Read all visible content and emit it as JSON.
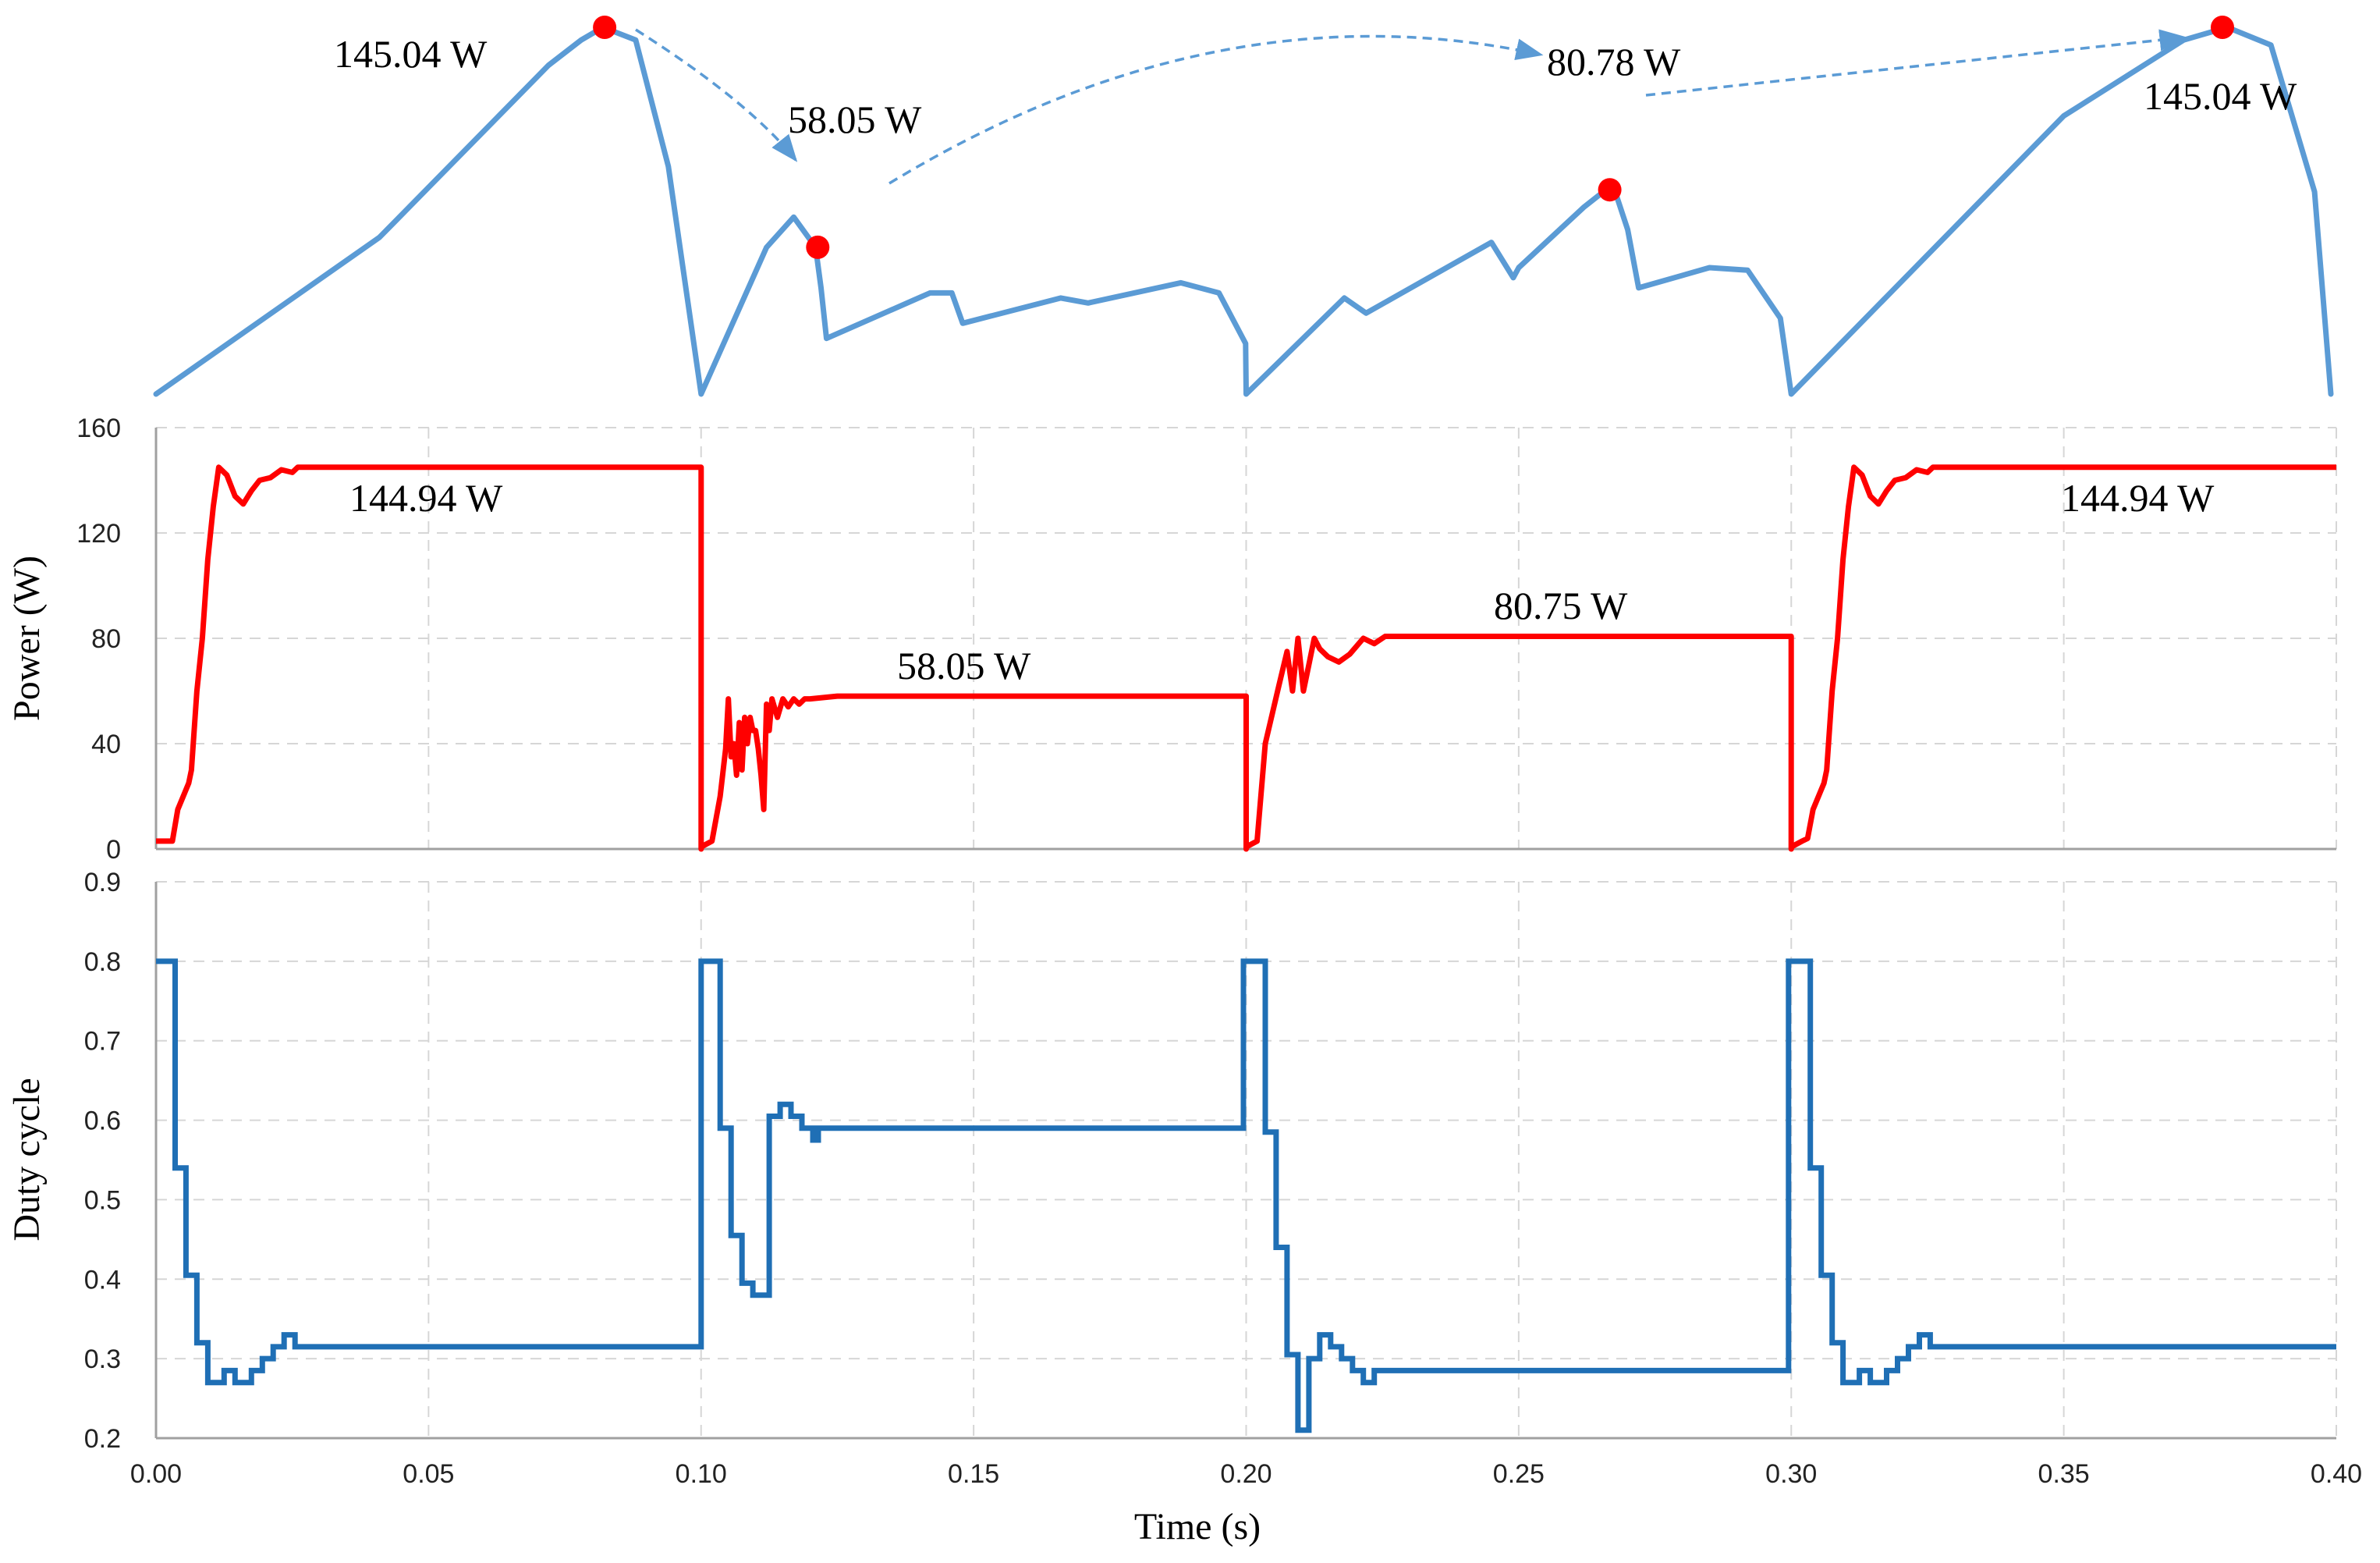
{
  "chart_data": [
    {
      "type": "line",
      "panel": "pv-power-curve-top",
      "annotations": [
        {
          "label": "145.04 W",
          "x": 0.0823,
          "y": 145.04
        },
        {
          "label": "58.05 W",
          "x": 0.1214,
          "y": 58.05
        },
        {
          "label": "80.78 W",
          "x": 0.2667,
          "y": 80.78
        },
        {
          "label": "145.04 W",
          "x": 0.3791,
          "y": 145.04
        }
      ],
      "series": [
        {
          "color": "#5b9bd5",
          "x": [
            0.0,
            0.041,
            0.072,
            0.078,
            0.082,
            0.088,
            0.094,
            0.1,
            0.112,
            0.117,
            0.121,
            0.122,
            0.123,
            0.142,
            0.146,
            0.148,
            0.166,
            0.171,
            0.188,
            0.195,
            0.1999,
            0.2,
            0.218,
            0.222,
            0.245,
            0.249,
            0.25,
            0.262,
            0.266,
            0.268,
            0.27,
            0.272,
            0.285,
            0.292,
            0.298,
            0.3,
            0.35,
            0.372,
            0.38,
            0.388,
            0.396,
            0.399
          ],
          "y": [
            0.0,
            62.0,
            130.0,
            140.0,
            145.04,
            140.0,
            90.0,
            0.0,
            58.0,
            70.0,
            58.05,
            42.0,
            22.0,
            40.0,
            40.0,
            28.0,
            38.0,
            36.0,
            44.0,
            40.0,
            20.0,
            0.0,
            38.0,
            32.0,
            60.0,
            46.0,
            50.0,
            74.0,
            80.78,
            78.0,
            65.0,
            42.0,
            50.0,
            49.0,
            30.0,
            0.0,
            110.0,
            140.0,
            145.04,
            138.0,
            80.0,
            0.0
          ]
        }
      ]
    },
    {
      "type": "line",
      "panel": "power-vs-time",
      "ylabel": "Power (W)",
      "ylim": [
        0,
        160
      ],
      "yticks": [
        "0",
        "40",
        "80",
        "120",
        "160"
      ],
      "xlim": [
        0.0,
        0.4
      ],
      "grid": true,
      "annotations": [
        {
          "label": "144.94 W",
          "x": 0.052,
          "y": 144.94
        },
        {
          "label": "58.05 W",
          "x": 0.15,
          "y": 58.05
        },
        {
          "label": "80.75 W",
          "x": 0.25,
          "y": 80.75
        },
        {
          "label": "144.94 W",
          "x": 0.366,
          "y": 144.94
        }
      ],
      "series": [
        {
          "color": "#ff0000",
          "x": [
            0.0,
            0.003,
            0.004,
            0.005,
            0.006,
            0.0065,
            0.0075,
            0.0085,
            0.0095,
            0.0105,
            0.0115,
            0.013,
            0.0145,
            0.016,
            0.0175,
            0.019,
            0.021,
            0.023,
            0.025,
            0.026,
            0.04,
            0.1,
            0.1,
            0.1002,
            0.102,
            0.1035,
            0.1045,
            0.105,
            0.1055,
            0.106,
            0.1065,
            0.107,
            0.1075,
            0.108,
            0.1085,
            0.109,
            0.1095,
            0.11,
            0.1105,
            0.111,
            0.1115,
            0.112,
            0.1125,
            0.113,
            0.114,
            0.115,
            0.116,
            0.117,
            0.118,
            0.119,
            0.12,
            0.125,
            0.2,
            0.2,
            0.2002,
            0.202,
            0.2035,
            0.206,
            0.2075,
            0.2085,
            0.2095,
            0.2105,
            0.2115,
            0.2125,
            0.2135,
            0.215,
            0.217,
            0.219,
            0.2215,
            0.2235,
            0.2255,
            0.227,
            0.3,
            0.3,
            0.3002,
            0.302,
            0.303,
            0.304,
            0.305,
            0.306,
            0.3065,
            0.3075,
            0.3085,
            0.3095,
            0.3105,
            0.3115,
            0.313,
            0.3145,
            0.316,
            0.3175,
            0.319,
            0.321,
            0.323,
            0.325,
            0.326,
            0.34,
            0.4
          ],
          "y": [
            3.0,
            3.0,
            15.0,
            20.0,
            25.0,
            30.0,
            60.0,
            80.0,
            110.0,
            130.0,
            144.94,
            142.0,
            134.0,
            131.0,
            136.0,
            140.0,
            141.0,
            144.0,
            143.0,
            144.94,
            144.94,
            144.94,
            0.0,
            1.0,
            3.0,
            20.0,
            38.0,
            57.0,
            35.0,
            40.0,
            28.0,
            48.0,
            30.0,
            50.0,
            40.0,
            50.0,
            45.0,
            45.0,
            38.0,
            28.0,
            15.0,
            55.0,
            45.0,
            57.0,
            50.0,
            57.0,
            54.0,
            57.0,
            55.0,
            57.0,
            57.0,
            58.05,
            58.05,
            0.0,
            1.0,
            3.0,
            40.0,
            62.0,
            75.0,
            60.0,
            80.0,
            60.0,
            70.0,
            80.0,
            76.0,
            73.0,
            71.0,
            74.0,
            80.0,
            78.0,
            80.75,
            80.75,
            80.75,
            0.0,
            1.0,
            3.0,
            4.0,
            15.0,
            20.0,
            25.0,
            30.0,
            60.0,
            80.0,
            110.0,
            130.0,
            144.94,
            142.0,
            134.0,
            131.0,
            136.0,
            140.0,
            141.0,
            144.0,
            143.0,
            144.94,
            144.94,
            144.94
          ]
        }
      ]
    },
    {
      "type": "line",
      "panel": "duty-cycle-vs-time",
      "ylabel": "Duty cycle",
      "xlabel": "Time (s)",
      "ylim": [
        0.2,
        0.9
      ],
      "yticks": [
        "0.2",
        "0.3",
        "0.4",
        "0.5",
        "0.6",
        "0.7",
        "0.8",
        "0.9"
      ],
      "xlim": [
        0.0,
        0.4
      ],
      "xticks": [
        "0.00",
        "0.05",
        "0.10",
        "0.15",
        "0.20",
        "0.25",
        "0.30",
        "0.35",
        "0.40"
      ],
      "grid": true,
      "series": [
        {
          "color": "#1f6fb5",
          "x": [
            0.0,
            0.0035,
            0.0035,
            0.0055,
            0.0055,
            0.0075,
            0.0075,
            0.0095,
            0.0095,
            0.0105,
            0.0105,
            0.0125,
            0.0125,
            0.0145,
            0.0145,
            0.0175,
            0.0175,
            0.0195,
            0.0195,
            0.0215,
            0.0215,
            0.0235,
            0.0235,
            0.0255,
            0.0255,
            0.0265,
            0.0265,
            0.1,
            0.1,
            0.1035,
            0.1035,
            0.1055,
            0.1055,
            0.1075,
            0.1075,
            0.1095,
            0.1095,
            0.1125,
            0.1125,
            0.1145,
            0.1145,
            0.1165,
            0.1165,
            0.1185,
            0.1185,
            0.1205,
            0.1205,
            0.1215,
            0.1215,
            0.1245,
            0.1245,
            0.1995,
            0.1995,
            0.2035,
            0.2035,
            0.2055,
            0.2055,
            0.2075,
            0.2075,
            0.2095,
            0.2095,
            0.2115,
            0.2115,
            0.2135,
            0.2135,
            0.2155,
            0.2155,
            0.2175,
            0.2175,
            0.2195,
            0.2195,
            0.2215,
            0.2215,
            0.2235,
            0.2235,
            0.2255,
            0.2255,
            0.2995,
            0.2995,
            0.3035,
            0.3035,
            0.3055,
            0.3055,
            0.3075,
            0.3075,
            0.3095,
            0.3095,
            0.3105,
            0.3105,
            0.3125,
            0.3125,
            0.3145,
            0.3145,
            0.3175,
            0.3175,
            0.3195,
            0.3195,
            0.3215,
            0.3215,
            0.3235,
            0.3235,
            0.3255,
            0.3255,
            0.3265,
            0.3265,
            0.4
          ],
          "y": [
            0.8,
            0.8,
            0.54,
            0.54,
            0.405,
            0.405,
            0.32,
            0.32,
            0.27,
            0.27,
            0.27,
            0.27,
            0.285,
            0.285,
            0.27,
            0.27,
            0.285,
            0.285,
            0.3,
            0.3,
            0.315,
            0.315,
            0.33,
            0.33,
            0.315,
            0.315,
            0.315,
            0.315,
            0.8,
            0.8,
            0.59,
            0.59,
            0.455,
            0.455,
            0.395,
            0.395,
            0.38,
            0.38,
            0.605,
            0.605,
            0.62,
            0.62,
            0.605,
            0.605,
            0.59,
            0.59,
            0.575,
            0.575,
            0.59,
            0.59,
            0.59,
            0.59,
            0.8,
            0.8,
            0.585,
            0.585,
            0.44,
            0.44,
            0.305,
            0.305,
            0.21,
            0.21,
            0.3,
            0.3,
            0.33,
            0.33,
            0.315,
            0.315,
            0.3,
            0.3,
            0.285,
            0.285,
            0.27,
            0.27,
            0.285,
            0.285,
            0.285,
            0.285,
            0.8,
            0.8,
            0.54,
            0.54,
            0.405,
            0.405,
            0.32,
            0.32,
            0.27,
            0.27,
            0.27,
            0.27,
            0.285,
            0.285,
            0.27,
            0.27,
            0.285,
            0.285,
            0.3,
            0.3,
            0.315,
            0.315,
            0.33,
            0.33,
            0.315,
            0.315,
            0.315,
            0.315
          ]
        }
      ]
    }
  ]
}
